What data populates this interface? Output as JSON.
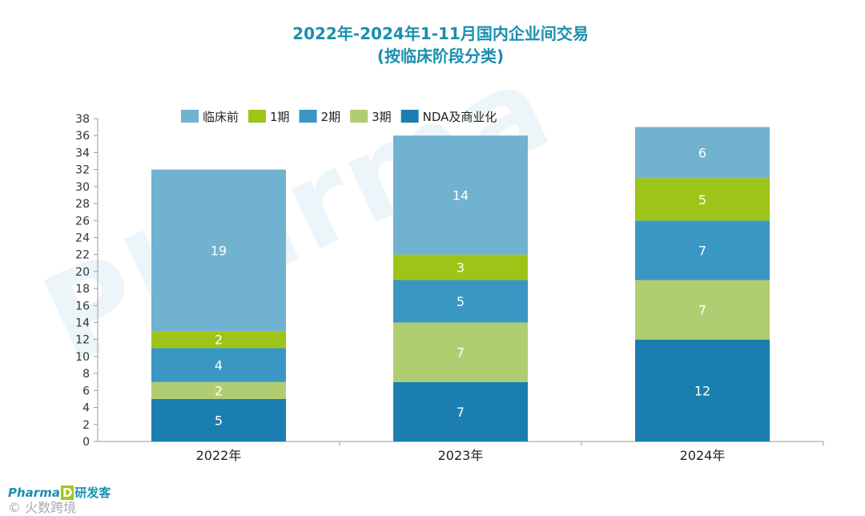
{
  "title": {
    "line1": "2022年-2024年1-11月国内企业间交易",
    "line2": "(按临床阶段分类)"
  },
  "chart_data": {
    "type": "bar",
    "stacked": true,
    "categories": [
      "2022年",
      "2023年",
      "2024年"
    ],
    "series": [
      {
        "name": "NDA及商业化",
        "values": [
          5,
          7,
          12
        ],
        "color": "#1a7fb0",
        "label_color": "#ffffff"
      },
      {
        "name": "3期",
        "values": [
          2,
          7,
          7
        ],
        "color": "#b1cd72",
        "label_color": "#ffffff"
      },
      {
        "name": "2期",
        "values": [
          4,
          5,
          7
        ],
        "color": "#3a97c3",
        "label_color": "#ffffff"
      },
      {
        "name": "1期",
        "values": [
          2,
          3,
          5
        ],
        "color": "#9ec418",
        "label_color": "#ffffff"
      },
      {
        "name": "临床前",
        "values": [
          19,
          14,
          6
        ],
        "color": "#71b2d0",
        "label_color": "#ffffff"
      }
    ],
    "legend_order": [
      "临床前",
      "1期",
      "2期",
      "3期",
      "NDA及商业化"
    ],
    "legend_position": "top",
    "ylim": [
      0,
      38
    ],
    "yticks": [
      0,
      2,
      4,
      6,
      8,
      10,
      12,
      14,
      16,
      18,
      20,
      22,
      24,
      26,
      28,
      30,
      32,
      34,
      36,
      38
    ],
    "grid": false
  },
  "watermark": "Pharma",
  "footer": {
    "logo_left": "Pharma",
    "logo_badge": "D",
    "logo_cn": "研发客",
    "mark": "© 火数跨境"
  }
}
